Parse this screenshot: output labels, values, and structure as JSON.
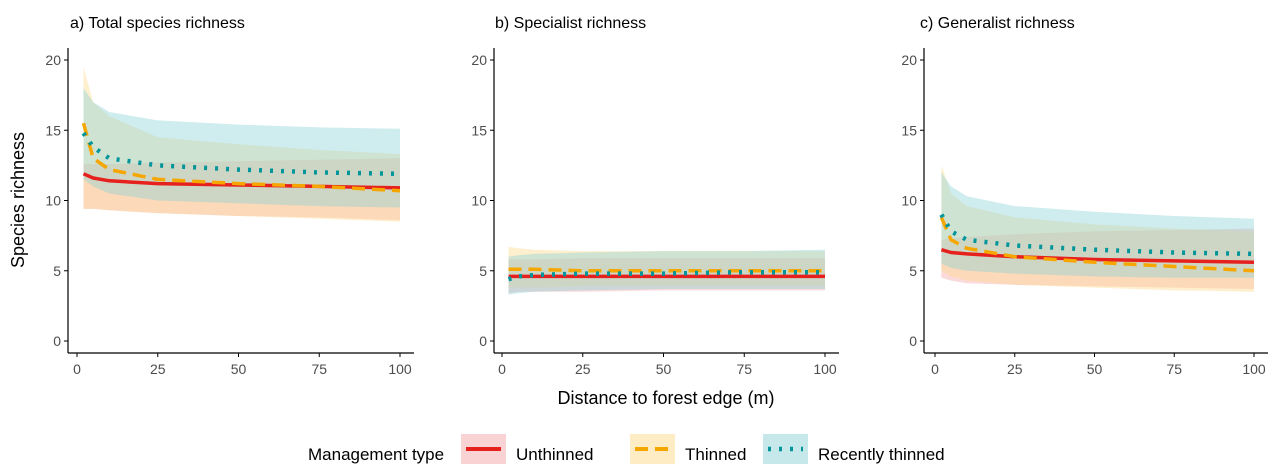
{
  "chart_data": [
    {
      "panel_title": "a) Total species richness",
      "type": "line",
      "x": [
        2,
        5,
        10,
        25,
        50,
        75,
        100
      ],
      "ylim": [
        0,
        21
      ],
      "xlim": [
        0,
        100
      ],
      "series": [
        {
          "name": "Unthinned",
          "values": [
            11.9,
            11.6,
            11.4,
            11.2,
            11.1,
            11.0,
            10.9
          ],
          "lower": [
            9.4,
            9.4,
            9.3,
            9.1,
            8.9,
            8.8,
            8.6
          ],
          "upper": [
            12.6,
            12.6,
            12.6,
            12.7,
            12.8,
            12.9,
            13.0
          ]
        },
        {
          "name": "Thinned",
          "values": [
            15.5,
            13.0,
            12.2,
            11.5,
            11.2,
            11.0,
            10.7
          ],
          "lower": [
            9.4,
            9.4,
            9.3,
            9.1,
            8.9,
            8.7,
            8.5
          ],
          "upper": [
            19.5,
            17.0,
            16.0,
            14.5,
            14.0,
            13.6,
            13.3
          ]
        },
        {
          "name": "Recently thinned",
          "values": [
            14.8,
            13.8,
            13.0,
            12.5,
            12.2,
            12.0,
            11.9
          ],
          "lower": [
            11.5,
            11.0,
            10.5,
            10.0,
            9.8,
            9.6,
            9.5
          ],
          "upper": [
            18.0,
            17.0,
            16.3,
            15.7,
            15.4,
            15.2,
            15.1
          ]
        }
      ]
    },
    {
      "panel_title": "b) Specialist richness",
      "type": "line",
      "x": [
        2,
        5,
        10,
        25,
        50,
        75,
        100
      ],
      "ylim": [
        0,
        21
      ],
      "xlim": [
        0,
        100
      ],
      "series": [
        {
          "name": "Unthinned",
          "values": [
            4.6,
            4.6,
            4.6,
            4.6,
            4.6,
            4.6,
            4.6
          ],
          "lower": [
            3.4,
            3.5,
            3.5,
            3.5,
            3.6,
            3.6,
            3.6
          ],
          "upper": [
            5.8,
            5.8,
            5.8,
            5.9,
            5.9,
            5.9,
            5.9
          ]
        },
        {
          "name": "Thinned",
          "values": [
            5.1,
            5.1,
            5.1,
            5.0,
            5.0,
            5.0,
            5.0
          ],
          "lower": [
            3.8,
            3.8,
            3.8,
            3.9,
            3.9,
            3.9,
            3.9
          ],
          "upper": [
            6.7,
            6.6,
            6.5,
            6.4,
            6.4,
            6.4,
            6.4
          ]
        },
        {
          "name": "Recently thinned",
          "values": [
            4.4,
            4.6,
            4.7,
            4.8,
            4.8,
            4.9,
            4.9
          ],
          "lower": [
            3.3,
            3.4,
            3.5,
            3.6,
            3.7,
            3.7,
            3.7
          ],
          "upper": [
            6.0,
            6.1,
            6.2,
            6.3,
            6.4,
            6.4,
            6.5
          ]
        }
      ]
    },
    {
      "panel_title": "c) Generalist richness",
      "type": "line",
      "x": [
        2,
        5,
        10,
        25,
        50,
        75,
        100
      ],
      "ylim": [
        0,
        21
      ],
      "xlim": [
        0,
        100
      ],
      "series": [
        {
          "name": "Unthinned",
          "values": [
            6.5,
            6.3,
            6.2,
            6.0,
            5.8,
            5.7,
            5.6
          ],
          "lower": [
            4.5,
            4.3,
            4.1,
            4.0,
            3.9,
            3.8,
            3.7
          ],
          "upper": [
            7.2,
            7.3,
            7.4,
            7.6,
            7.8,
            7.9,
            8.0
          ]
        },
        {
          "name": "Thinned",
          "values": [
            8.8,
            7.2,
            6.6,
            6.0,
            5.6,
            5.3,
            5.0
          ],
          "lower": [
            5.0,
            4.6,
            4.3,
            4.0,
            3.8,
            3.6,
            3.5
          ],
          "upper": [
            12.5,
            10.5,
            9.6,
            8.8,
            8.3,
            8.0,
            7.8
          ]
        },
        {
          "name": "Recently thinned",
          "values": [
            9.0,
            7.8,
            7.2,
            6.8,
            6.5,
            6.3,
            6.2
          ],
          "lower": [
            5.5,
            5.2,
            5.0,
            4.8,
            4.6,
            4.5,
            4.5
          ],
          "upper": [
            12.0,
            11.0,
            10.3,
            9.6,
            9.2,
            8.9,
            8.7
          ]
        }
      ]
    }
  ],
  "axes": {
    "ylabel": "Species richness",
    "xlabel": "Distance to forest edge (m)",
    "xticks": [
      "0",
      "25",
      "50",
      "75",
      "100"
    ],
    "yticks": [
      "0",
      "5",
      "10",
      "15",
      "20"
    ]
  },
  "legend": {
    "title": "Management type",
    "items": [
      "Unthinned",
      "Thinned",
      "Recently thinned"
    ]
  },
  "colors": {
    "unthinned_line": "#e5201d",
    "thinned_line": "#f6a600",
    "recent_line": "#00959b",
    "unthinned_fill": "#f4a6aa",
    "thinned_fill": "#fdd98a",
    "recent_fill": "#8dd1d6"
  }
}
